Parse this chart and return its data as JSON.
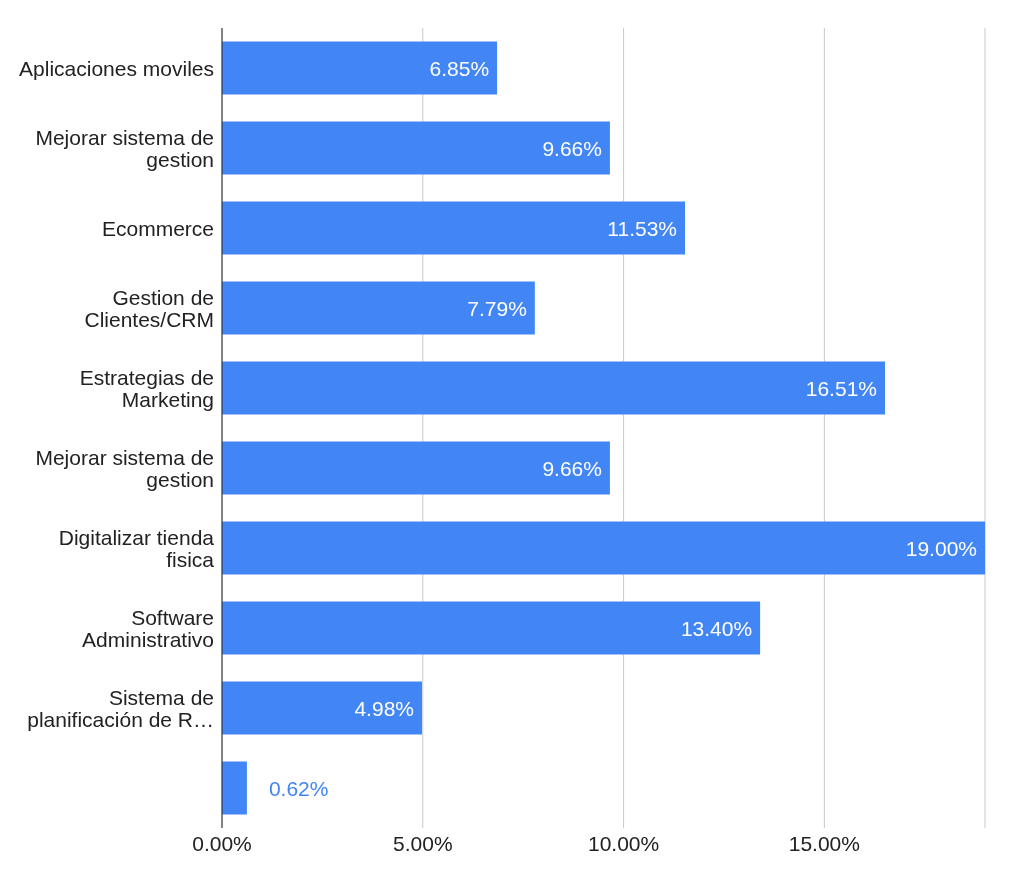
{
  "chart_data": {
    "type": "bar",
    "orientation": "horizontal",
    "categories": [
      "Aplicaciones moviles",
      "Mejorar sistema de gestion",
      "Ecommerce",
      "Gestion de Clientes/CRM",
      "Estrategias de Marketing",
      "Mejorar sistema de gestion",
      "Digitalizar tienda fisica",
      "Software Administrativo",
      "Sistema de planificación de R…",
      null
    ],
    "values": [
      6.85,
      9.66,
      11.53,
      7.79,
      16.51,
      9.66,
      19.0,
      13.4,
      4.98,
      0.62
    ],
    "value_labels": [
      "6.85%",
      "9.66%",
      "11.53%",
      "7.79%",
      "16.51%",
      "9.66%",
      "19.00%",
      "13.40%",
      "4.98%",
      "0.62%"
    ],
    "color": "#4285f4",
    "xlim": [
      0,
      19
    ],
    "xticks": [
      {
        "value": 0,
        "label": "0.00%"
      },
      {
        "value": 5,
        "label": "5.00%"
      },
      {
        "value": 10,
        "label": "10.00%"
      },
      {
        "value": 15,
        "label": "15.00%"
      }
    ],
    "grid": "x"
  }
}
